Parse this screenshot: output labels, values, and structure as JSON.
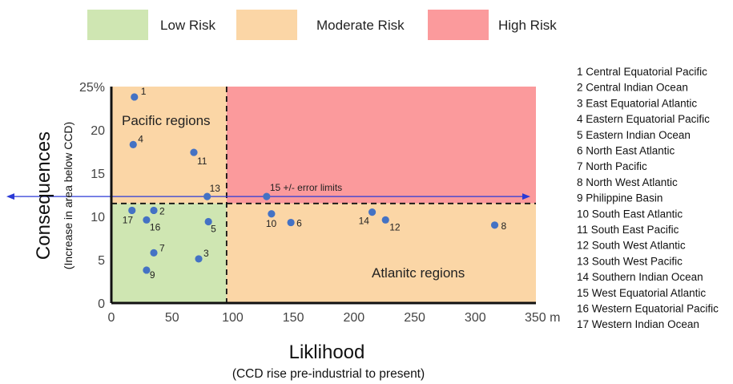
{
  "chart_data": {
    "type": "scatter",
    "xlabel": "Liklihood",
    "xsublabel": "(CCD rise pre-industrial to present)",
    "ylabel": "Consequences",
    "ysublabel": "(Increase in area below CCD)",
    "xlim": [
      0,
      350
    ],
    "ylim": [
      0,
      25
    ],
    "x_ticks": [
      0,
      50,
      100,
      150,
      200,
      250,
      300,
      350
    ],
    "x_tick_labels": [
      "0",
      "50",
      "100",
      "150",
      "200",
      "250",
      "300",
      "350 m"
    ],
    "y_ticks": [
      0,
      5,
      10,
      15,
      20,
      25
    ],
    "y_tick_labels": [
      "0",
      "5",
      "10",
      "15",
      "20",
      "25%"
    ],
    "legend": [
      {
        "label": "Low Risk",
        "color": "#cfe6b2"
      },
      {
        "label": "Moderate Risk",
        "color": "#fbd6a6"
      },
      {
        "label": "High Risk",
        "color": "#fb9a9c"
      }
    ],
    "regions": {
      "x_threshold": 95,
      "y_threshold": 11.5,
      "labels": [
        "Pacific regions",
        "Atlanitc regions"
      ]
    },
    "error_limits_label": "15 +/- error limits",
    "marker_color": "#4472c4",
    "arrow_color": "#2b3ad6",
    "points": [
      {
        "id": "1",
        "x": 19,
        "y": 23.8
      },
      {
        "id": "2",
        "x": 35,
        "y": 10.7
      },
      {
        "id": "3",
        "x": 72,
        "y": 5.1
      },
      {
        "id": "4",
        "x": 18,
        "y": 18.3
      },
      {
        "id": "5",
        "x": 80,
        "y": 9.4
      },
      {
        "id": "6",
        "x": 148,
        "y": 9.3
      },
      {
        "id": "7",
        "x": 35,
        "y": 5.8
      },
      {
        "id": "8",
        "x": 316,
        "y": 9.0
      },
      {
        "id": "9",
        "x": 29,
        "y": 3.8
      },
      {
        "id": "10",
        "x": 132,
        "y": 10.3
      },
      {
        "id": "11",
        "x": 68,
        "y": 17.4
      },
      {
        "id": "12",
        "x": 226,
        "y": 9.6
      },
      {
        "id": "13",
        "x": 79,
        "y": 12.3
      },
      {
        "id": "14",
        "x": 215,
        "y": 10.5
      },
      {
        "id": "15",
        "x": 128,
        "y": 12.3
      },
      {
        "id": "16",
        "x": 29,
        "y": 9.6
      },
      {
        "id": "17",
        "x": 17,
        "y": 10.7
      }
    ],
    "key_list": [
      "1 Central Equatorial Pacific",
      "2 Central Indian Ocean",
      "3 East Equatorial Atlantic",
      "4 Eastern Equatorial Pacific",
      "5 Eastern Indian Ocean",
      "6 North East Atlantic",
      "7 North Pacific",
      "8 North West Atlantic",
      "9 Philippine Basin",
      "10 South East Atlantic",
      "11 South East Pacific",
      "12 South West Atlantic",
      "13 South West Pacific",
      "14 Southern Indian Ocean",
      "15 West Equatorial Atlantic",
      "16 Western Equatorial Pacific",
      "17 Western Indian Ocean"
    ]
  }
}
